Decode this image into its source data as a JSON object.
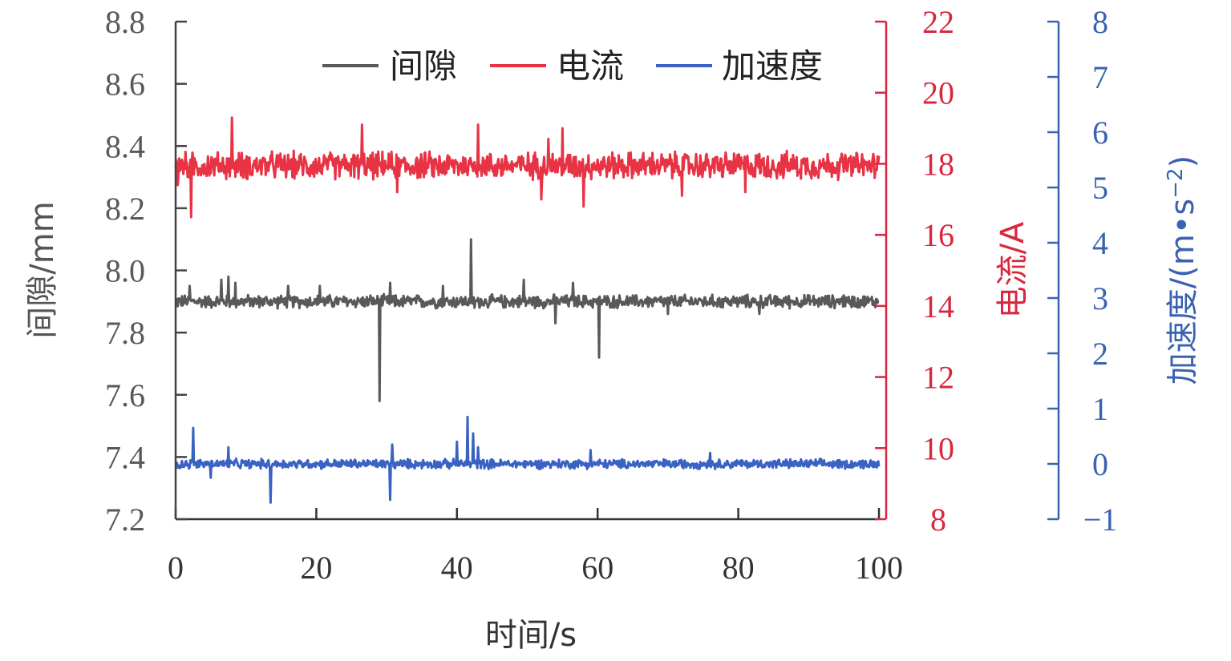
{
  "chart_data": {
    "type": "line",
    "x_axis": {
      "label": "时间/s",
      "lim": [
        0,
        100
      ],
      "ticks": [
        0,
        20,
        40,
        60,
        80,
        100
      ]
    },
    "axes": [
      {
        "id": "gap",
        "side": "left",
        "label": "间隙/mm",
        "lim": [
          7.2,
          8.8
        ],
        "ticks": [
          7.2,
          7.4,
          7.6,
          7.8,
          8.0,
          8.2,
          8.4,
          8.6,
          8.8
        ],
        "tick_labels": [
          "7.2",
          "7.4",
          "7.6",
          "7.8",
          "8.0",
          "8.2",
          "8.4",
          "8.6",
          "8.8"
        ],
        "color": "#444444"
      },
      {
        "id": "current",
        "side": "right",
        "label": "电流/A",
        "lim": [
          8,
          22
        ],
        "ticks": [
          8,
          10,
          12,
          14,
          16,
          18,
          20,
          22
        ],
        "tick_labels": [
          "8",
          "10",
          "12",
          "14",
          "16",
          "18",
          "20",
          "22"
        ],
        "color": "#d9273e"
      },
      {
        "id": "accel",
        "side": "right-outer",
        "label": "加速度/(m•s",
        "label_sup": "−2",
        "label_close": ")",
        "lim": [
          -1,
          8
        ],
        "ticks": [
          -1,
          0,
          1,
          2,
          3,
          4,
          5,
          6,
          7,
          8
        ],
        "tick_labels": [
          "−1",
          "0",
          "1",
          "2",
          "3",
          "4",
          "5",
          "6",
          "7",
          "8"
        ],
        "color": "#3a62b0"
      }
    ],
    "legend": {
      "placement": "top-center"
    },
    "series": [
      {
        "name": "间隙",
        "axis": "gap",
        "color": "#595959",
        "baseline": 7.9,
        "noise": 0.025,
        "events": [
          {
            "x": 0.5,
            "y": 7.91
          },
          {
            "x": 2.0,
            "y": 7.95
          },
          {
            "x": 6.5,
            "y": 7.97
          },
          {
            "x": 7.5,
            "y": 7.98
          },
          {
            "x": 8.5,
            "y": 7.96
          },
          {
            "x": 16.0,
            "y": 7.95
          },
          {
            "x": 20.5,
            "y": 7.95
          },
          {
            "x": 29.0,
            "y": 7.58
          },
          {
            "x": 30.5,
            "y": 7.96
          },
          {
            "x": 38.0,
            "y": 7.95
          },
          {
            "x": 42.0,
            "y": 8.1
          },
          {
            "x": 42.5,
            "y": 7.88
          },
          {
            "x": 49.5,
            "y": 7.97
          },
          {
            "x": 54.0,
            "y": 7.83
          },
          {
            "x": 56.5,
            "y": 7.96
          },
          {
            "x": 60.2,
            "y": 7.72
          },
          {
            "x": 70.0,
            "y": 7.86
          },
          {
            "x": 83.0,
            "y": 7.86
          },
          {
            "x": 95.0,
            "y": 7.92
          }
        ]
      },
      {
        "name": "电流",
        "axis": "current",
        "color": "#e83345",
        "baseline": 17.95,
        "noise": 0.45,
        "events": [
          {
            "x": 0.3,
            "y": 17.4
          },
          {
            "x": 2.2,
            "y": 16.5
          },
          {
            "x": 8.0,
            "y": 19.3
          },
          {
            "x": 26.5,
            "y": 19.1
          },
          {
            "x": 31.5,
            "y": 17.2
          },
          {
            "x": 43.0,
            "y": 19.1
          },
          {
            "x": 52.0,
            "y": 17.0
          },
          {
            "x": 53.0,
            "y": 18.7
          },
          {
            "x": 55.0,
            "y": 19.0
          },
          {
            "x": 58.0,
            "y": 16.8
          },
          {
            "x": 72.0,
            "y": 17.1
          },
          {
            "x": 81.0,
            "y": 17.2
          }
        ]
      },
      {
        "name": "加速度",
        "axis": "accel",
        "color": "#3a62c4",
        "baseline": 0.0,
        "noise": 0.1,
        "events": [
          {
            "x": 2.5,
            "y": 0.65
          },
          {
            "x": 5.0,
            "y": -0.25
          },
          {
            "x": 7.5,
            "y": 0.3
          },
          {
            "x": 13.5,
            "y": -0.7
          },
          {
            "x": 30.5,
            "y": -0.65
          },
          {
            "x": 30.8,
            "y": 0.35
          },
          {
            "x": 40.0,
            "y": 0.4
          },
          {
            "x": 41.5,
            "y": 0.85
          },
          {
            "x": 42.3,
            "y": 0.55
          },
          {
            "x": 43.0,
            "y": 0.3
          },
          {
            "x": 59.0,
            "y": 0.25
          },
          {
            "x": 76.0,
            "y": 0.2
          }
        ]
      }
    ]
  }
}
